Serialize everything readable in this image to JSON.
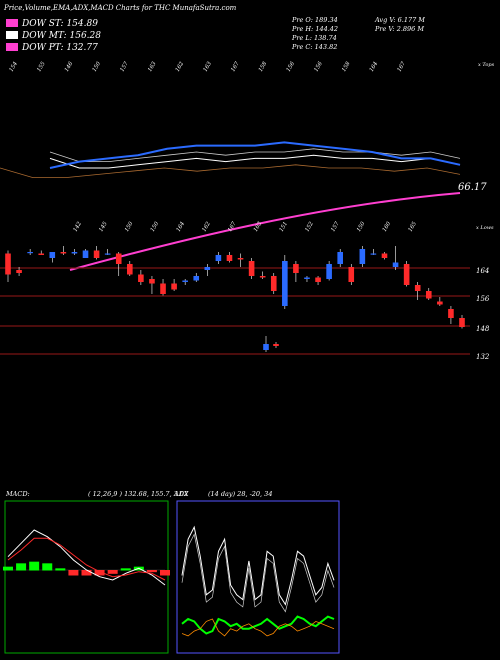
{
  "header": {
    "title": "Price,Volume,EMA,ADX,MACD Charts for THC MunafaSutra.com",
    "legend": [
      {
        "label": "DOW ST: 154.89",
        "color": "#ff3fd0"
      },
      {
        "label": "DOW MT: 156.28",
        "color": "#ffffff"
      },
      {
        "label": "DOW PT: 132.77",
        "color": "#ff3fd0"
      }
    ],
    "stats_left": [
      "Pre   O: 189.34",
      "Pre   H: 144.42",
      "Pre   L: 138.74",
      "Pre   C: 143.82"
    ],
    "stats_right": [
      "Avg V: 6.177  M",
      "Pre   V: 2.896   M"
    ]
  },
  "ema_panel": {
    "corner_label": "x Tops",
    "top_labels": [
      "154",
      "155",
      "146",
      "150",
      "157",
      "163",
      "162",
      "163",
      "167",
      "158",
      "156",
      "156",
      "158",
      "164",
      "167"
    ],
    "last_value_label": "66.17",
    "bottom_corner_label": "x Lows",
    "bottom_labels": [
      "142",
      "145",
      "150",
      "150",
      "164",
      "162",
      "167",
      "163",
      "151",
      "152",
      "157",
      "150",
      "160",
      "165"
    ]
  },
  "price_panel": {
    "y_labels": [
      "164",
      "156",
      "148",
      "132"
    ],
    "colors": {
      "up": "#2b6bff",
      "down": "#ff2a2a",
      "level": "#7a1414"
    }
  },
  "macd_panel": {
    "label": "MACD:",
    "values": "( 12,26,9 ) 132.68,  155.7,  3.02",
    "color": "#00ff00"
  },
  "adx_panel": {
    "label": "ADX",
    "values": "(14  day) 28,  -20,  34",
    "plus_di_color": "#00ff00",
    "minus_di_color": "#ff8c00"
  },
  "chart_data": [
    {
      "type": "line",
      "name": "ema-panel",
      "series": [
        {
          "color": "#ffffff",
          "values": [
            153,
            150,
            150,
            151,
            152,
            153,
            152,
            153,
            153,
            154,
            153,
            153,
            152,
            153,
            151
          ]
        },
        {
          "color": "#2b6bff",
          "values": [
            150,
            152,
            153,
            154,
            156,
            157,
            157,
            157,
            158,
            157,
            156,
            155,
            153,
            153,
            151
          ]
        },
        {
          "color": "#ff3fd0",
          "values": [
            88,
            90,
            92,
            94,
            97,
            100,
            103,
            106,
            109,
            112,
            115,
            118,
            121,
            124,
            66.17
          ]
        }
      ]
    },
    {
      "type": "candlestick",
      "name": "price-panel",
      "ylim": [
        125,
        170
      ],
      "candles": [
        {
          "o": 165.5,
          "h": 166.5,
          "l": 156,
          "c": 158.5
        },
        {
          "o": 160,
          "h": 161,
          "l": 158,
          "c": 159
        },
        {
          "o": 166,
          "h": 167,
          "l": 165,
          "c": 166
        },
        {
          "o": 165.5,
          "h": 166.5,
          "l": 165,
          "c": 165
        },
        {
          "o": 164,
          "h": 166,
          "l": 162.5,
          "c": 166
        },
        {
          "o": 166,
          "h": 168,
          "l": 165,
          "c": 165.5
        },
        {
          "o": 165.5,
          "h": 167,
          "l": 165,
          "c": 166
        },
        {
          "o": 164,
          "h": 167,
          "l": 164,
          "c": 166.5
        },
        {
          "o": 166.5,
          "h": 168,
          "l": 163.5,
          "c": 164
        },
        {
          "o": 165.5,
          "h": 167,
          "l": 165,
          "c": 165.5
        },
        {
          "o": 165.5,
          "h": 166,
          "l": 158,
          "c": 162
        },
        {
          "o": 162,
          "h": 163,
          "l": 158,
          "c": 158.5
        },
        {
          "o": 158.5,
          "h": 160,
          "l": 155,
          "c": 156
        },
        {
          "o": 157,
          "h": 158,
          "l": 152,
          "c": 155.5
        },
        {
          "o": 155.5,
          "h": 157,
          "l": 151.5,
          "c": 152
        },
        {
          "o": 155.5,
          "h": 157,
          "l": 153,
          "c": 153.5
        },
        {
          "o": 156,
          "h": 157,
          "l": 155,
          "c": 156.5
        },
        {
          "o": 156.5,
          "h": 159,
          "l": 156,
          "c": 158
        },
        {
          "o": 160,
          "h": 162,
          "l": 158,
          "c": 161
        },
        {
          "o": 163,
          "h": 166,
          "l": 162,
          "c": 165
        },
        {
          "o": 165,
          "h": 166,
          "l": 162.5,
          "c": 163
        },
        {
          "o": 164,
          "h": 165.5,
          "l": 161,
          "c": 163.5
        },
        {
          "o": 163,
          "h": 164,
          "l": 157,
          "c": 158
        },
        {
          "o": 158,
          "h": 159.5,
          "l": 157,
          "c": 157.5
        },
        {
          "o": 158,
          "h": 159,
          "l": 152,
          "c": 153
        },
        {
          "o": 148,
          "h": 165,
          "l": 147,
          "c": 163
        },
        {
          "o": 162,
          "h": 163,
          "l": 156,
          "c": 159
        },
        {
          "o": 157,
          "h": 158,
          "l": 156,
          "c": 157.5
        },
        {
          "o": 157.5,
          "h": 158,
          "l": 155,
          "c": 156
        },
        {
          "o": 157,
          "h": 163,
          "l": 156.5,
          "c": 162
        },
        {
          "o": 162,
          "h": 167,
          "l": 161,
          "c": 166
        },
        {
          "o": 161,
          "h": 162,
          "l": 155,
          "c": 156
        },
        {
          "o": 162,
          "h": 168,
          "l": 161,
          "c": 167
        },
        {
          "o": 165.5,
          "h": 167,
          "l": 165,
          "c": 165.5
        },
        {
          "o": 165.5,
          "h": 166,
          "l": 163.5,
          "c": 164
        },
        {
          "o": 161,
          "h": 168,
          "l": 160,
          "c": 162.5
        },
        {
          "o": 162,
          "h": 163,
          "l": 154.5,
          "c": 155
        },
        {
          "o": 155,
          "h": 156,
          "l": 150,
          "c": 153
        },
        {
          "o": 153,
          "h": 154,
          "l": 150,
          "c": 150.5
        },
        {
          "o": 149.5,
          "h": 151,
          "l": 148,
          "c": 148.5
        },
        {
          "o": 147,
          "h": 148,
          "l": 142,
          "c": 144
        },
        {
          "o": 144,
          "h": 145,
          "l": 140.5,
          "c": 141
        }
      ],
      "extra_candles": [
        {
          "o": 139.5,
          "h": 143,
          "l": 139,
          "c": 141
        },
        {
          "o": 141,
          "h": 141.5,
          "l": 140,
          "c": 140.5
        }
      ],
      "levels": [
        164,
        156,
        148,
        132
      ]
    },
    {
      "type": "line",
      "name": "macd-panel",
      "series": [
        {
          "color": "#ffffff",
          "values": [
            0.8,
            1.6,
            2.4,
            2.0,
            1.4,
            0.6,
            0.0,
            -0.4,
            -0.6,
            -0.2,
            0.1,
            -0.3,
            -0.9
          ]
        },
        {
          "color": "#ff2a2a",
          "values": [
            0.6,
            1.2,
            1.9,
            1.9,
            1.5,
            0.9,
            0.3,
            -0.1,
            -0.4,
            -0.3,
            -0.1,
            -0.2,
            -0.6
          ]
        }
      ],
      "histogram": [
        0.2,
        0.4,
        0.5,
        0.4,
        0.1,
        -0.3,
        -0.3,
        -0.3,
        -0.2,
        0.1,
        0.2,
        -0.1,
        -0.3
      ],
      "ylim": [
        -3,
        3
      ]
    },
    {
      "type": "line",
      "name": "adx-panel",
      "series": [
        {
          "color": "#ffffff",
          "values": [
            30,
            45,
            50,
            38,
            22,
            24,
            40,
            45,
            26,
            22,
            20,
            36,
            20,
            22,
            40,
            38,
            22,
            18,
            28,
            40,
            38,
            30,
            22,
            25,
            35,
            28
          ]
        },
        {
          "color": "#00ff00",
          "values": [
            10,
            12,
            11,
            8,
            6,
            7,
            12,
            11,
            9,
            10,
            8,
            8,
            9,
            10,
            12,
            10,
            8,
            9,
            10,
            13,
            12,
            10,
            9,
            11,
            13,
            12
          ]
        },
        {
          "color": "#ff8c00",
          "values": [
            6,
            5,
            7,
            8,
            11,
            12,
            7,
            5,
            8,
            7,
            9,
            10,
            8,
            7,
            5,
            6,
            9,
            10,
            9,
            7,
            8,
            9,
            11,
            10,
            9,
            8
          ]
        }
      ],
      "ylim": [
        0,
        55
      ]
    }
  ]
}
